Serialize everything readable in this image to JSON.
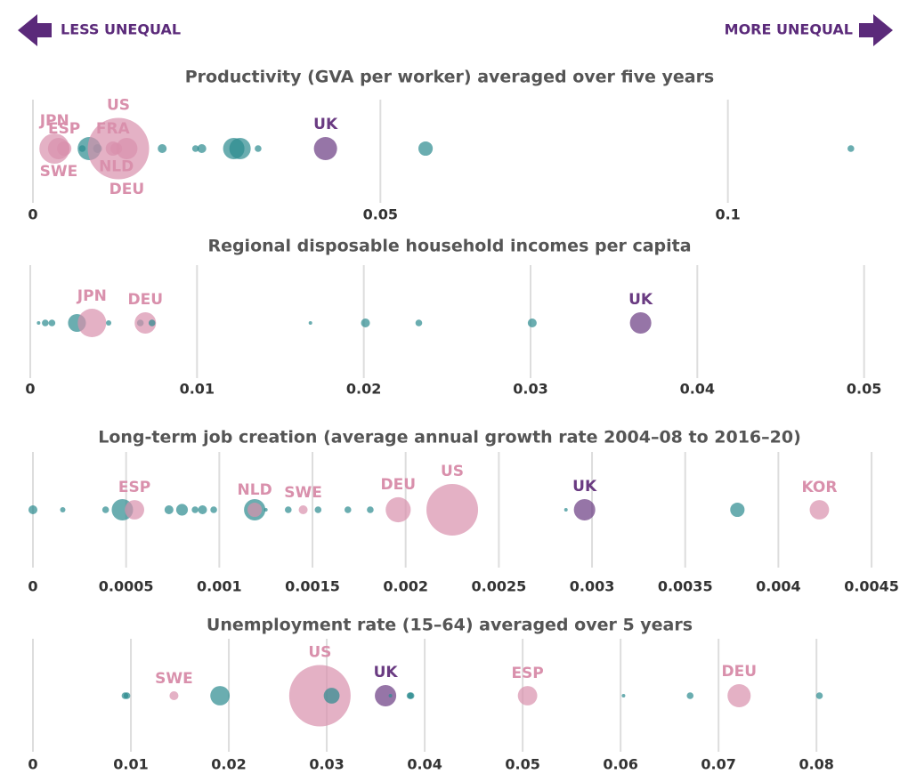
{
  "header": {
    "left": "LESS UNEQUAL",
    "right": "MORE UNEQUAL"
  },
  "chart_data": [
    {
      "type": "strip",
      "title": "Productivity (GVA per worker) averaged over five years",
      "xlim": [
        0,
        0.124
      ],
      "xticks": [
        0,
        0.05,
        0.1
      ],
      "grid": true,
      "points": [
        {
          "label": "JPN",
          "value": 0.0031,
          "size": 80,
          "color": "#d990ac"
        },
        {
          "label": "SWE",
          "value": 0.0037,
          "size": 40,
          "color": "#d990ac"
        },
        {
          "label": "ESP",
          "value": 0.0045,
          "size": 18,
          "color": "#d990ac"
        },
        {
          "label": null,
          "value": 0.0081,
          "size": 47,
          "color": "#2b8a8e"
        },
        {
          "label": null,
          "value": 0.0071,
          "size": 4,
          "color": "#2b8a8e"
        },
        {
          "label": null,
          "value": 0.0093,
          "size": 7,
          "color": "#2b8a8e"
        },
        {
          "label": "FRA",
          "value": 0.0115,
          "size": 18,
          "color": "#d990ac"
        },
        {
          "label": "NLD",
          "value": 0.012,
          "size": 12,
          "color": "#d990ac"
        },
        {
          "label": "US",
          "value": 0.0123,
          "size": 330,
          "color": "#d990ac"
        },
        {
          "label": "DEU",
          "value": 0.0135,
          "size": 40,
          "color": "#d990ac"
        },
        {
          "label": null,
          "value": 0.0186,
          "size": 7,
          "color": "#2b8a8e"
        },
        {
          "label": null,
          "value": 0.0234,
          "size": 4,
          "color": "#2b8a8e"
        },
        {
          "label": null,
          "value": 0.0243,
          "size": 7,
          "color": "#2b8a8e"
        },
        {
          "label": null,
          "value": 0.0289,
          "size": 40,
          "color": "#2b8a8e"
        },
        {
          "label": null,
          "value": 0.0298,
          "size": 40,
          "color": "#2b8a8e"
        },
        {
          "label": null,
          "value": 0.0324,
          "size": 4,
          "color": "#2b8a8e"
        },
        {
          "label": "UK",
          "value": 0.0421,
          "size": 47,
          "color": "#6a3b82"
        },
        {
          "label": null,
          "value": 0.0565,
          "size": 18,
          "color": "#2b8a8e"
        },
        {
          "label": null,
          "value": 0.1177,
          "size": 4,
          "color": "#2b8a8e"
        }
      ]
    },
    {
      "type": "strip",
      "title": "Regional disposable household incomes per capita",
      "xlim": [
        0,
        0.0513
      ],
      "xticks": [
        0,
        0.01,
        0.02,
        0.03,
        0.04,
        0.05
      ],
      "grid": true,
      "points": [
        {
          "label": null,
          "value": 0.0005,
          "size": 1.1,
          "color": "#2b8a8e"
        },
        {
          "label": null,
          "value": 0.0009,
          "size": 4,
          "color": "#2b8a8e"
        },
        {
          "label": null,
          "value": 0.0013,
          "size": 4,
          "color": "#2b8a8e"
        },
        {
          "label": null,
          "value": 0.0028,
          "size": 28,
          "color": "#2b8a8e"
        },
        {
          "label": "JPN",
          "value": 0.0037,
          "size": 71,
          "color": "#d990ac"
        },
        {
          "label": null,
          "value": 0.0047,
          "size": 2.5,
          "color": "#2b8a8e"
        },
        {
          "label": null,
          "value": 0.0066,
          "size": 4,
          "color": "#2b8a8e"
        },
        {
          "label": "DEU",
          "value": 0.0069,
          "size": 40,
          "color": "#d990ac"
        },
        {
          "label": null,
          "value": 0.0073,
          "size": 4,
          "color": "#2b8a8e"
        },
        {
          "label": null,
          "value": 0.0168,
          "size": 1.1,
          "color": "#2b8a8e"
        },
        {
          "label": null,
          "value": 0.0201,
          "size": 7,
          "color": "#2b8a8e"
        },
        {
          "label": null,
          "value": 0.0233,
          "size": 4,
          "color": "#2b8a8e"
        },
        {
          "label": null,
          "value": 0.0301,
          "size": 7,
          "color": "#2b8a8e"
        },
        {
          "label": "UK",
          "value": 0.0366,
          "size": 40,
          "color": "#6a3b82"
        }
      ]
    },
    {
      "type": "strip",
      "title": "Long-term job creation (average annual growth rate 2004–08 to 2016–20)",
      "xlim": [
        0,
        0.0046
      ],
      "xticks": [
        0,
        0.0005,
        0.001,
        0.0015,
        0.002,
        0.0025,
        0.003,
        0.0035,
        0.004,
        0.0045
      ],
      "grid": true,
      "points": [
        {
          "label": null,
          "value": 0,
          "size": 7,
          "color": "#2b8a8e"
        },
        {
          "label": null,
          "value": 0.00016,
          "size": 2.5,
          "color": "#2b8a8e"
        },
        {
          "label": null,
          "value": 0.00039,
          "size": 4,
          "color": "#2b8a8e"
        },
        {
          "label": null,
          "value": 0.00048,
          "size": 40,
          "color": "#2b8a8e"
        },
        {
          "label": "ESP",
          "value": 0.000545,
          "size": 33,
          "color": "#d990ac"
        },
        {
          "label": null,
          "value": 0.00073,
          "size": 7,
          "color": "#2b8a8e"
        },
        {
          "label": null,
          "value": 0.0008,
          "size": 12,
          "color": "#2b8a8e"
        },
        {
          "label": null,
          "value": 0.00087,
          "size": 4,
          "color": "#2b8a8e"
        },
        {
          "label": null,
          "value": 0.00091,
          "size": 7,
          "color": "#2b8a8e"
        },
        {
          "label": null,
          "value": 0.00097,
          "size": 4,
          "color": "#2b8a8e"
        },
        {
          "label": null,
          "value": 0.00119,
          "size": 40,
          "color": "#2b8a8e"
        },
        {
          "label": "NLD",
          "value": 0.00119,
          "size": 18,
          "color": "#d990ac"
        },
        {
          "label": null,
          "value": 0.00125,
          "size": 1.1,
          "color": "#2b8a8e"
        },
        {
          "label": null,
          "value": 0.00137,
          "size": 4,
          "color": "#2b8a8e"
        },
        {
          "label": "SWE",
          "value": 0.00145,
          "size": 7,
          "color": "#d990ac"
        },
        {
          "label": null,
          "value": 0.00153,
          "size": 4,
          "color": "#2b8a8e"
        },
        {
          "label": null,
          "value": 0.00169,
          "size": 4,
          "color": "#2b8a8e"
        },
        {
          "label": null,
          "value": 0.00181,
          "size": 4,
          "color": "#2b8a8e"
        },
        {
          "label": "DEU",
          "value": 0.00196,
          "size": 55,
          "color": "#d990ac"
        },
        {
          "label": "US",
          "value": 0.00225,
          "size": 233,
          "color": "#d990ac"
        },
        {
          "label": null,
          "value": 0.00286,
          "size": 1.1,
          "color": "#2b8a8e"
        },
        {
          "label": "UK",
          "value": 0.00296,
          "size": 40,
          "color": "#6a3b82"
        },
        {
          "label": null,
          "value": 0.00378,
          "size": 18,
          "color": "#2b8a8e"
        },
        {
          "label": "KOR",
          "value": 0.00422,
          "size": 33,
          "color": "#d990ac"
        }
      ]
    },
    {
      "type": "strip",
      "title": "Unemployment rate (15–64) averaged over 5 years",
      "xlim": [
        0,
        0.0878
      ],
      "xticks": [
        0,
        0.01,
        0.02,
        0.03,
        0.04,
        0.05,
        0.06,
        0.07,
        0.08
      ],
      "grid": true,
      "points": [
        {
          "label": null,
          "value": 0.0094,
          "size": 4,
          "color": "#2b8a8e"
        },
        {
          "label": null,
          "value": 0.0096,
          "size": 4,
          "color": "#2b8a8e"
        },
        {
          "label": "SWE",
          "value": 0.0144,
          "size": 7,
          "color": "#d990ac"
        },
        {
          "label": null,
          "value": 0.0191,
          "size": 33,
          "color": "#2b8a8e"
        },
        {
          "label": "US",
          "value": 0.0293,
          "size": 330,
          "color": "#d990ac"
        },
        {
          "label": null,
          "value": 0.0305,
          "size": 22,
          "color": "#2b8a8e"
        },
        {
          "label": "UK",
          "value": 0.036,
          "size": 40,
          "color": "#6a3b82"
        },
        {
          "label": null,
          "value": 0.0365,
          "size": 1.1,
          "color": "#2b8a8e"
        },
        {
          "label": null,
          "value": 0.0385,
          "size": 4,
          "color": "#2b8a8e"
        },
        {
          "label": null,
          "value": 0.0386,
          "size": 4,
          "color": "#2b8a8e"
        },
        {
          "label": "ESP",
          "value": 0.0505,
          "size": 33,
          "color": "#d990ac"
        },
        {
          "label": null,
          "value": 0.0603,
          "size": 1.1,
          "color": "#2b8a8e"
        },
        {
          "label": null,
          "value": 0.0671,
          "size": 4,
          "color": "#2b8a8e"
        },
        {
          "label": "DEU",
          "value": 0.0721,
          "size": 47,
          "color": "#d990ac"
        },
        {
          "label": null,
          "value": 0.0803,
          "size": 4,
          "color": "#2b8a8e"
        }
      ]
    }
  ]
}
